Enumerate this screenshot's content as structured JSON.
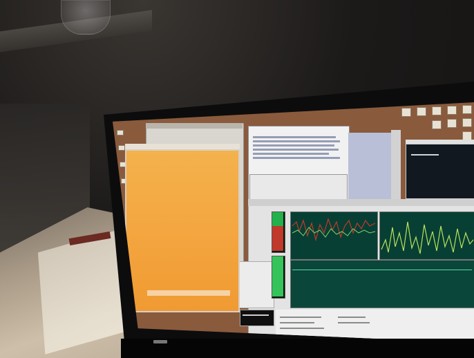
{
  "scene": {
    "description_tag": "laptop-on-desk",
    "colors": {
      "desktop_wallpaper": "#8a5a3d",
      "orange_window": "#f4a640",
      "graph_background": "#083f34",
      "gauge_green": "#22b14c",
      "gauge_red": "#c0392b"
    },
    "gauges": [
      {
        "name_icon": "gauge-bar",
        "level_fraction": 0.35
      },
      {
        "name_icon": "gauge-bar",
        "level_fraction": 0.97
      }
    ]
  }
}
